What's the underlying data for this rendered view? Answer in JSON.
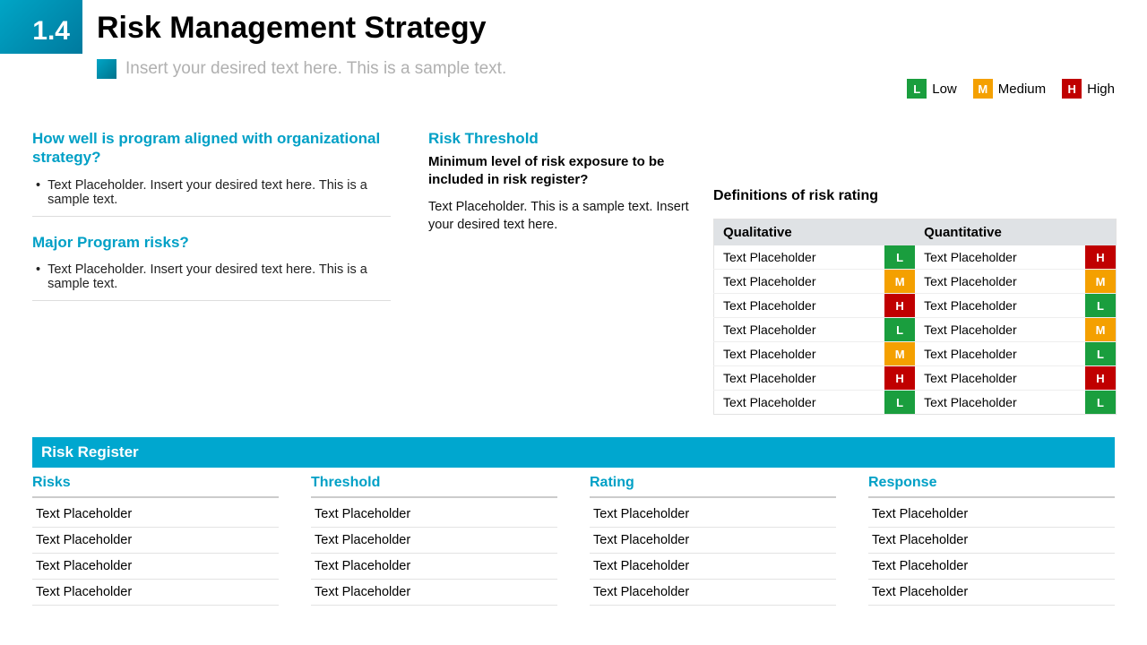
{
  "header": {
    "number": "1.4",
    "title": "Risk Management Strategy",
    "subtitle": "Insert your desired text here. This is a sample text."
  },
  "colors": {
    "accent": "#00a7cf",
    "low": "#1a9e3e",
    "medium": "#f4a000",
    "high": "#c00000"
  },
  "legend": [
    {
      "code": "L",
      "label": "Low",
      "cls": "chip-L"
    },
    {
      "code": "M",
      "label": "Medium",
      "cls": "chip-M"
    },
    {
      "code": "H",
      "label": "High",
      "cls": "chip-H"
    }
  ],
  "left": {
    "q1": {
      "title": "How well is program aligned with organizational strategy?",
      "bullet": "Text Placeholder. Insert your desired text here. This is a sample text."
    },
    "q2": {
      "title": "Major Program risks?",
      "bullet": "Text Placeholder. Insert your desired text here. This is a sample text."
    }
  },
  "mid": {
    "title": "Risk Threshold",
    "subtitle": "Minimum level of risk exposure to be included in risk register?",
    "text": "Text Placeholder. This is a sample text. Insert your desired text here."
  },
  "defs": {
    "title": "Definitions of risk rating",
    "headers": [
      "Qualitative",
      "Quantitative"
    ],
    "rows": [
      {
        "q": "Text Placeholder",
        "qr": "L",
        "n": "Text Placeholder",
        "nr": "H"
      },
      {
        "q": "Text Placeholder",
        "qr": "M",
        "n": "Text Placeholder",
        "nr": "M"
      },
      {
        "q": "Text Placeholder",
        "qr": "H",
        "n": "Text Placeholder",
        "nr": "L"
      },
      {
        "q": "Text Placeholder",
        "qr": "L",
        "n": "Text Placeholder",
        "nr": "M"
      },
      {
        "q": "Text Placeholder",
        "qr": "M",
        "n": "Text Placeholder",
        "nr": "L"
      },
      {
        "q": "Text Placeholder",
        "qr": "H",
        "n": "Text Placeholder",
        "nr": "H"
      },
      {
        "q": "Text Placeholder",
        "qr": "L",
        "n": "Text Placeholder",
        "nr": "L"
      }
    ]
  },
  "register": {
    "title": "Risk Register",
    "columns": [
      {
        "header": "Risks",
        "rows": [
          "Text Placeholder",
          "Text Placeholder",
          "Text Placeholder",
          "Text Placeholder"
        ]
      },
      {
        "header": "Threshold",
        "rows": [
          "Text Placeholder",
          "Text Placeholder",
          "Text Placeholder",
          "Text Placeholder"
        ]
      },
      {
        "header": "Rating",
        "rows": [
          "Text Placeholder",
          "Text Placeholder",
          "Text Placeholder",
          "Text Placeholder"
        ]
      },
      {
        "header": "Response",
        "rows": [
          "Text Placeholder",
          "Text Placeholder",
          "Text Placeholder",
          "Text Placeholder"
        ]
      }
    ]
  }
}
